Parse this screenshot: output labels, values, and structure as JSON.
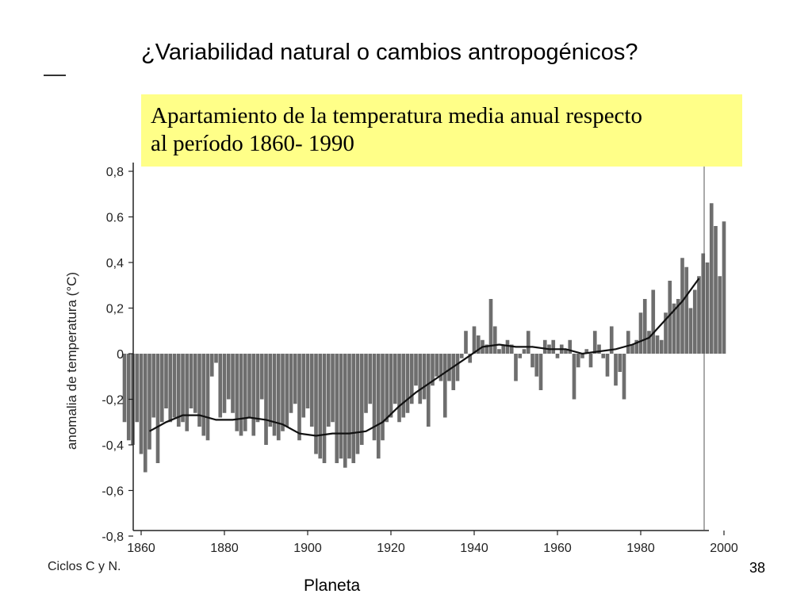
{
  "slide": {
    "title": "¿Variabilidad natural o cambios antropogénicos?",
    "subtitle_line1": "Apartamiento de la temperatura media anual respecto",
    "subtitle_line2": "al período 1860- 1990",
    "footer_left": "Ciclos C y N.",
    "footer_page": "38",
    "footer_bottom": "Planeta",
    "highlight_color": "#ffff88"
  },
  "chart_data": {
    "type": "bar",
    "ylabel": "anomalia de temperatura (°C)",
    "xlabel": "",
    "xlim": [
      1856,
      2002
    ],
    "ylim": [
      -0.8,
      0.8
    ],
    "x_ticks": [
      1860,
      1880,
      1900,
      1920,
      1940,
      1960,
      1980,
      2000
    ],
    "x_tick_labels": [
      "1860",
      "1880",
      "1900",
      "1920",
      "1940",
      "1960",
      "1980",
      "2000"
    ],
    "y_ticks": [
      0.8,
      0.6,
      0.4,
      0.2,
      0,
      -0.2,
      -0.4,
      -0.6,
      -0.8
    ],
    "y_tick_labels": [
      "0,8",
      "0.6",
      "0,4",
      "0,2",
      "0",
      "-0,2",
      "-0,4",
      "-0,6",
      "-0,8"
    ],
    "bar_color": "#6e6e6e",
    "line_color": "#111111",
    "series": [
      {
        "kind": "bar",
        "x": [
          1856,
          1857,
          1858,
          1859,
          1860,
          1861,
          1862,
          1863,
          1864,
          1865,
          1866,
          1867,
          1868,
          1869,
          1870,
          1871,
          1872,
          1873,
          1874,
          1875,
          1876,
          1877,
          1878,
          1879,
          1880,
          1881,
          1882,
          1883,
          1884,
          1885,
          1886,
          1887,
          1888,
          1889,
          1890,
          1891,
          1892,
          1893,
          1894,
          1895,
          1896,
          1897,
          1898,
          1899,
          1900,
          1901,
          1902,
          1903,
          1904,
          1905,
          1906,
          1907,
          1908,
          1909,
          1910,
          1911,
          1912,
          1913,
          1914,
          1915,
          1916,
          1917,
          1918,
          1919,
          1920,
          1921,
          1922,
          1923,
          1924,
          1925,
          1926,
          1927,
          1928,
          1929,
          1930,
          1931,
          1932,
          1933,
          1934,
          1935,
          1936,
          1937,
          1938,
          1939,
          1940,
          1941,
          1942,
          1943,
          1944,
          1945,
          1946,
          1947,
          1948,
          1949,
          1950,
          1951,
          1952,
          1953,
          1954,
          1955,
          1956,
          1957,
          1958,
          1959,
          1960,
          1961,
          1962,
          1963,
          1964,
          1965,
          1966,
          1967,
          1968,
          1969,
          1970,
          1971,
          1972,
          1973,
          1974,
          1975,
          1976,
          1977,
          1978,
          1979,
          1980,
          1981,
          1982,
          1983,
          1984,
          1985,
          1986,
          1987,
          1988,
          1989,
          1990,
          1991,
          1992,
          1993,
          1994,
          1995,
          1996,
          1997,
          1998,
          1999,
          2000
        ],
        "values": [
          -0.3,
          -0.38,
          -0.4,
          -0.3,
          -0.44,
          -0.52,
          -0.42,
          -0.28,
          -0.48,
          -0.3,
          -0.24,
          -0.3,
          -0.28,
          -0.32,
          -0.3,
          -0.34,
          -0.24,
          -0.26,
          -0.32,
          -0.36,
          -0.38,
          -0.1,
          -0.04,
          -0.28,
          -0.26,
          -0.2,
          -0.26,
          -0.34,
          -0.36,
          -0.34,
          -0.28,
          -0.36,
          -0.3,
          -0.2,
          -0.4,
          -0.32,
          -0.36,
          -0.38,
          -0.34,
          -0.32,
          -0.26,
          -0.22,
          -0.38,
          -0.28,
          -0.24,
          -0.32,
          -0.44,
          -0.46,
          -0.48,
          -0.32,
          -0.3,
          -0.48,
          -0.46,
          -0.5,
          -0.46,
          -0.48,
          -0.44,
          -0.4,
          -0.26,
          -0.22,
          -0.38,
          -0.46,
          -0.38,
          -0.3,
          -0.28,
          -0.22,
          -0.3,
          -0.28,
          -0.26,
          -0.22,
          -0.14,
          -0.22,
          -0.2,
          -0.32,
          -0.14,
          -0.1,
          -0.12,
          -0.28,
          -0.12,
          -0.16,
          -0.12,
          -0.02,
          0.1,
          -0.04,
          0.12,
          0.08,
          0.06,
          0.04,
          0.24,
          0.12,
          0.02,
          0.04,
          0.06,
          0.04,
          -0.12,
          -0.02,
          0.02,
          0.1,
          -0.06,
          -0.1,
          -0.16,
          0.06,
          0.04,
          0.06,
          -0.02,
          0.04,
          0.02,
          0.06,
          -0.2,
          -0.06,
          -0.02,
          0.02,
          -0.06,
          0.1,
          0.04,
          -0.02,
          -0.1,
          0.12,
          -0.14,
          -0.08,
          -0.2,
          0.1,
          0.04,
          0.06,
          0.18,
          0.24,
          0.1,
          0.28,
          0.08,
          0.06,
          0.18,
          0.32,
          0.22,
          0.24,
          0.42,
          0.38,
          0.2,
          0.28,
          0.34,
          0.44,
          0.4,
          0.66,
          0.56,
          0.34,
          0.58
        ]
      },
      {
        "kind": "line",
        "name": "",
        "x": [
          1862,
          1866,
          1870,
          1874,
          1878,
          1882,
          1886,
          1890,
          1894,
          1898,
          1902,
          1906,
          1910,
          1914,
          1918,
          1922,
          1926,
          1930,
          1934,
          1938,
          1942,
          1946,
          1950,
          1954,
          1958,
          1962,
          1966,
          1970,
          1974,
          1978,
          1982,
          1986,
          1990,
          1994
        ],
        "values": [
          -0.34,
          -0.3,
          -0.27,
          -0.27,
          -0.29,
          -0.29,
          -0.28,
          -0.29,
          -0.31,
          -0.35,
          -0.36,
          -0.35,
          -0.35,
          -0.34,
          -0.3,
          -0.23,
          -0.17,
          -0.12,
          -0.07,
          -0.02,
          0.03,
          0.04,
          0.03,
          0.03,
          0.02,
          0.02,
          0.0,
          0.01,
          0.02,
          0.04,
          0.07,
          0.15,
          0.23,
          0.33
        ]
      }
    ]
  }
}
